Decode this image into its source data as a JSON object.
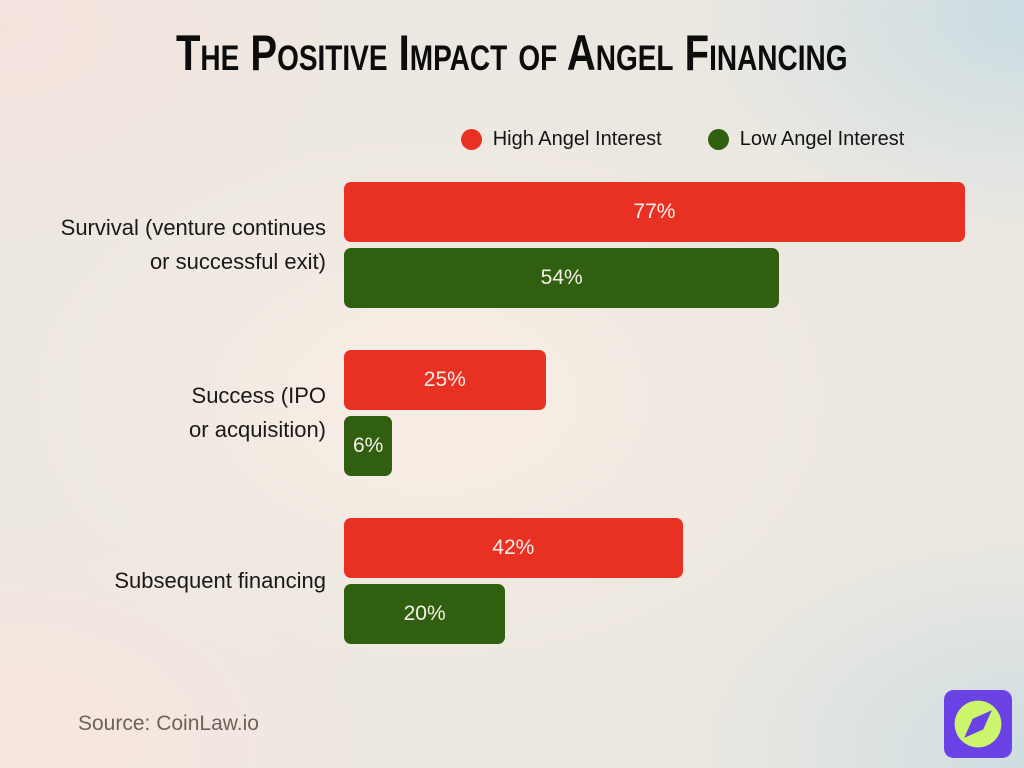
{
  "title": "The Positive Impact of Angel Financing",
  "legend": {
    "high": "High Angel Interest",
    "low": "Low Angel Interest"
  },
  "source": "Source: CoinLaw.io",
  "colors": {
    "high_series": "#e93123",
    "low_series": "#30600f",
    "background_pink": "#f5e2de",
    "background_blue": "#cadde3",
    "background_cream": "#f9ede4",
    "title_text": "#0c0c0c",
    "logo_purple": "#6b42e5",
    "logo_lime": "#ccf46c"
  },
  "chart_data": {
    "type": "bar",
    "orientation": "horizontal",
    "title": "The Positive Impact of Angel Financing",
    "categories": [
      "Survival (venture continues or successful exit)",
      "Success (IPO or acquisition)",
      "Subsequent financing"
    ],
    "series": [
      {
        "name": "High Angel Interest",
        "color": "#e93123",
        "values": [
          77,
          25,
          42
        ]
      },
      {
        "name": "Low Angel Interest",
        "color": "#30600f",
        "values": [
          54,
          6,
          20
        ]
      }
    ],
    "value_suffix": "%",
    "xlim": [
      0,
      80
    ],
    "grid": false,
    "legend_position": "top"
  },
  "groups": [
    {
      "label_line1": "Survival (venture continues",
      "label_line2": "or successful exit)",
      "high_label": "77%",
      "low_label": "54%"
    },
    {
      "label_line1": "Success (IPO",
      "label_line2": "or acquisition)",
      "high_label": "25%",
      "low_label": "6%"
    },
    {
      "label_line1": "Subsequent financing",
      "high_label": "42%",
      "low_label": "20%"
    }
  ],
  "logo": {
    "name": "coinlaw-compass-logo"
  }
}
